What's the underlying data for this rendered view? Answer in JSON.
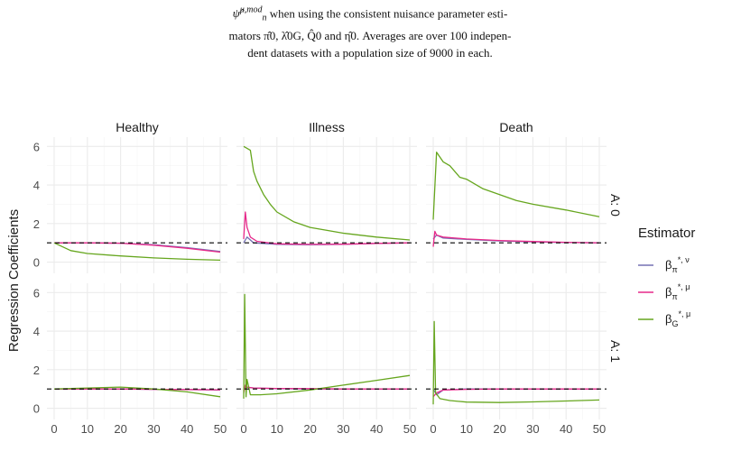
{
  "caption": {
    "line1_suffix": " when using the consistent nuisance parameter esti-",
    "line2": "mators π̂0, λ̂0G, Q̂0 and η̂0. Averages are over 100 indepen-",
    "line3": "dent datasets with a population size of 9000 in each.",
    "symbol_base": "ψ̂",
    "symbol_sup": "μ,mod",
    "symbol_sub": "n"
  },
  "chart_data": {
    "type": "line",
    "ylabel": "Regression Coefficients",
    "xlabel": "",
    "columns": [
      "Healthy",
      "Illness",
      "Death"
    ],
    "rows": [
      "A: 0",
      "A: 1"
    ],
    "xlim": [
      0,
      50
    ],
    "ylim": [
      -0.3,
      6.2
    ],
    "xticks": [
      0,
      10,
      20,
      30,
      40,
      50
    ],
    "yticks": [
      0,
      2,
      4,
      6
    ],
    "reference_line": 1,
    "grid": true,
    "legend": {
      "title": "Estimator",
      "position": "right",
      "entries": [
        {
          "key": "beta_pi_nu",
          "label": "β",
          "sub": "π",
          "sup": "*, ν",
          "color": "#7570b3"
        },
        {
          "key": "beta_pi_mu",
          "label": "β",
          "sub": "π",
          "sup": "*, μ",
          "color": "#e7298a"
        },
        {
          "key": "beta_G_mu",
          "label": "β",
          "sub": "G",
          "sup": "*, μ",
          "color": "#66a61e"
        }
      ]
    },
    "panels": [
      {
        "row": "A: 0",
        "col": "Healthy",
        "series": {
          "beta_pi_nu": [
            [
              0,
              1.0
            ],
            [
              10,
              1.0
            ],
            [
              20,
              0.98
            ],
            [
              30,
              0.9
            ],
            [
              40,
              0.75
            ],
            [
              50,
              0.55
            ]
          ],
          "beta_pi_mu": [
            [
              0,
              1.0
            ],
            [
              10,
              1.0
            ],
            [
              20,
              0.98
            ],
            [
              30,
              0.88
            ],
            [
              40,
              0.72
            ],
            [
              50,
              0.52
            ]
          ],
          "beta_G_mu": [
            [
              0,
              1.0
            ],
            [
              5,
              0.6
            ],
            [
              10,
              0.45
            ],
            [
              20,
              0.32
            ],
            [
              30,
              0.22
            ],
            [
              40,
              0.15
            ],
            [
              50,
              0.1
            ]
          ]
        }
      },
      {
        "row": "A: 0",
        "col": "Illness",
        "series": {
          "beta_pi_nu": [
            [
              0,
              1.0
            ],
            [
              1,
              1.3
            ],
            [
              3,
              1.0
            ],
            [
              10,
              0.92
            ],
            [
              20,
              0.9
            ],
            [
              30,
              0.92
            ],
            [
              40,
              0.97
            ],
            [
              50,
              1.0
            ]
          ],
          "beta_pi_mu": [
            [
              0,
              1.2
            ],
            [
              0.5,
              2.6
            ],
            [
              1,
              1.8
            ],
            [
              2,
              1.3
            ],
            [
              4,
              1.08
            ],
            [
              10,
              0.95
            ],
            [
              20,
              0.92
            ],
            [
              30,
              0.93
            ],
            [
              40,
              0.97
            ],
            [
              50,
              1.0
            ]
          ],
          "beta_G_mu": [
            [
              0,
              6.0
            ],
            [
              2,
              5.8
            ],
            [
              3,
              4.7
            ],
            [
              4,
              4.2
            ],
            [
              6,
              3.5
            ],
            [
              8,
              3.0
            ],
            [
              10,
              2.6
            ],
            [
              15,
              2.1
            ],
            [
              20,
              1.8
            ],
            [
              30,
              1.5
            ],
            [
              40,
              1.3
            ],
            [
              50,
              1.15
            ]
          ]
        }
      },
      {
        "row": "A: 0",
        "col": "Death",
        "series": {
          "beta_pi_nu": [
            [
              0,
              1.2
            ],
            [
              1,
              1.4
            ],
            [
              3,
              1.25
            ],
            [
              10,
              1.18
            ],
            [
              20,
              1.1
            ],
            [
              30,
              1.05
            ],
            [
              40,
              1.02
            ],
            [
              50,
              1.0
            ]
          ],
          "beta_pi_mu": [
            [
              0,
              0.8
            ],
            [
              0.5,
              1.6
            ],
            [
              1,
              1.4
            ],
            [
              3,
              1.3
            ],
            [
              10,
              1.2
            ],
            [
              20,
              1.12
            ],
            [
              30,
              1.07
            ],
            [
              40,
              1.03
            ],
            [
              50,
              1.0
            ]
          ],
          "beta_G_mu": [
            [
              0,
              2.2
            ],
            [
              1,
              5.7
            ],
            [
              3,
              5.2
            ],
            [
              5,
              5.0
            ],
            [
              8,
              4.4
            ],
            [
              10,
              4.3
            ],
            [
              15,
              3.8
            ],
            [
              20,
              3.5
            ],
            [
              25,
              3.2
            ],
            [
              30,
              3.0
            ],
            [
              40,
              2.7
            ],
            [
              50,
              2.35
            ]
          ]
        }
      },
      {
        "row": "A: 1",
        "col": "Healthy",
        "series": {
          "beta_pi_nu": [
            [
              0,
              1.0
            ],
            [
              10,
              1.0
            ],
            [
              20,
              1.0
            ],
            [
              30,
              0.98
            ],
            [
              40,
              0.97
            ],
            [
              50,
              0.95
            ]
          ],
          "beta_pi_mu": [
            [
              0,
              1.0
            ],
            [
              10,
              1.0
            ],
            [
              20,
              1.0
            ],
            [
              30,
              0.98
            ],
            [
              40,
              0.97
            ],
            [
              50,
              0.96
            ]
          ],
          "beta_G_mu": [
            [
              0,
              1.0
            ],
            [
              10,
              1.05
            ],
            [
              20,
              1.1
            ],
            [
              30,
              1.0
            ],
            [
              40,
              0.85
            ],
            [
              50,
              0.6
            ]
          ]
        }
      },
      {
        "row": "A: 1",
        "col": "Illness",
        "series": {
          "beta_pi_nu": [
            [
              0,
              1.0
            ],
            [
              1,
              1.1
            ],
            [
              3,
              1.05
            ],
            [
              10,
              1.02
            ],
            [
              20,
              1.0
            ],
            [
              30,
              1.0
            ],
            [
              40,
              1.0
            ],
            [
              50,
              1.0
            ]
          ],
          "beta_pi_mu": [
            [
              0,
              0.8
            ],
            [
              0.5,
              1.2
            ],
            [
              1,
              1.1
            ],
            [
              3,
              1.05
            ],
            [
              10,
              1.03
            ],
            [
              20,
              1.02
            ],
            [
              30,
              1.0
            ],
            [
              40,
              1.0
            ],
            [
              50,
              1.0
            ]
          ],
          "beta_G_mu": [
            [
              0,
              0.5
            ],
            [
              0.3,
              5.9
            ],
            [
              0.7,
              0.6
            ],
            [
              1,
              1.5
            ],
            [
              2,
              0.7
            ],
            [
              5,
              0.7
            ],
            [
              10,
              0.75
            ],
            [
              20,
              0.95
            ],
            [
              30,
              1.2
            ],
            [
              40,
              1.45
            ],
            [
              50,
              1.7
            ]
          ]
        }
      },
      {
        "row": "A: 1",
        "col": "Death",
        "series": {
          "beta_pi_nu": [
            [
              0,
              1.0
            ],
            [
              1,
              0.7
            ],
            [
              3,
              0.95
            ],
            [
              10,
              1.0
            ],
            [
              20,
              1.0
            ],
            [
              30,
              1.0
            ],
            [
              40,
              1.0
            ],
            [
              50,
              1.0
            ]
          ],
          "beta_pi_mu": [
            [
              0,
              0.6
            ],
            [
              1,
              0.8
            ],
            [
              3,
              0.95
            ],
            [
              10,
              0.98
            ],
            [
              20,
              1.0
            ],
            [
              30,
              1.0
            ],
            [
              40,
              1.0
            ],
            [
              50,
              1.0
            ]
          ],
          "beta_G_mu": [
            [
              0,
              0.2
            ],
            [
              0.3,
              4.5
            ],
            [
              0.7,
              0.8
            ],
            [
              2,
              0.5
            ],
            [
              5,
              0.4
            ],
            [
              10,
              0.32
            ],
            [
              20,
              0.3
            ],
            [
              30,
              0.33
            ],
            [
              40,
              0.38
            ],
            [
              50,
              0.43
            ]
          ]
        }
      }
    ]
  }
}
